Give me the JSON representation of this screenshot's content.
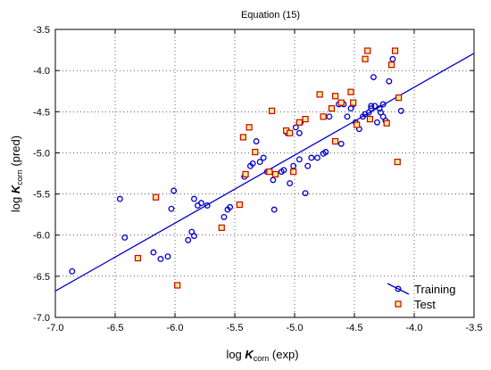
{
  "chart_data": {
    "type": "scatter",
    "title": "Equation (15)",
    "xlabel": {
      "prefix": "log ",
      "symbol": "K",
      "subscript": "corn",
      "suffix": " (exp)"
    },
    "ylabel": {
      "prefix": "log ",
      "symbol": "K",
      "subscript": "corn",
      "suffix": " (pred)"
    },
    "xlim": [
      -7.0,
      -3.5
    ],
    "ylim": [
      -7.0,
      -3.5
    ],
    "xticks": [
      "-7.0",
      "-6.5",
      "-6.0",
      "-5.5",
      "-5.0",
      "-4.5",
      "-4.0",
      "-3.5"
    ],
    "yticks": [
      "-3.5",
      "-4.0",
      "-4.5",
      "-5.0",
      "-5.5",
      "-6.0",
      "-6.5",
      "-7.0"
    ],
    "grid": true,
    "legend_position": "bottom-right",
    "regression_line": {
      "x": [
        -7.0,
        -3.5
      ],
      "y": [
        -6.68,
        -3.79
      ],
      "color": "#0000cc"
    },
    "series": [
      {
        "name": "Training",
        "marker": "circle",
        "color": "#0000cc",
        "points": [
          [
            -6.86,
            -6.44
          ],
          [
            -6.46,
            -5.56
          ],
          [
            -6.42,
            -6.03
          ],
          [
            -6.18,
            -6.21
          ],
          [
            -6.12,
            -6.29
          ],
          [
            -6.06,
            -6.26
          ],
          [
            -6.03,
            -5.68
          ],
          [
            -6.01,
            -5.46
          ],
          [
            -5.89,
            -6.06
          ],
          [
            -5.86,
            -5.96
          ],
          [
            -5.84,
            -6.01
          ],
          [
            -5.84,
            -5.56
          ],
          [
            -5.81,
            -5.64
          ],
          [
            -5.78,
            -5.61
          ],
          [
            -5.73,
            -5.64
          ],
          [
            -5.59,
            -5.78
          ],
          [
            -5.56,
            -5.69
          ],
          [
            -5.54,
            -5.66
          ],
          [
            -5.42,
            -5.29
          ],
          [
            -5.37,
            -5.16
          ],
          [
            -5.35,
            -5.13
          ],
          [
            -5.32,
            -4.86
          ],
          [
            -5.29,
            -5.11
          ],
          [
            -5.26,
            -5.06
          ],
          [
            -5.23,
            -5.23
          ],
          [
            -5.18,
            -5.33
          ],
          [
            -5.17,
            -5.69
          ],
          [
            -5.11,
            -5.23
          ],
          [
            -5.09,
            -5.21
          ],
          [
            -5.06,
            -4.76
          ],
          [
            -5.04,
            -5.37
          ],
          [
            -5.01,
            -5.16
          ],
          [
            -4.99,
            -4.69
          ],
          [
            -4.96,
            -5.08
          ],
          [
            -4.96,
            -4.76
          ],
          [
            -4.95,
            -4.63
          ],
          [
            -4.91,
            -5.49
          ],
          [
            -4.89,
            -5.16
          ],
          [
            -4.86,
            -5.06
          ],
          [
            -4.81,
            -5.06
          ],
          [
            -4.76,
            -5.01
          ],
          [
            -4.74,
            -4.99
          ],
          [
            -4.71,
            -4.56
          ],
          [
            -4.69,
            -4.46
          ],
          [
            -4.61,
            -4.89
          ],
          [
            -4.59,
            -4.41
          ],
          [
            -4.56,
            -4.56
          ],
          [
            -4.53,
            -4.46
          ],
          [
            -4.51,
            -4.41
          ],
          [
            -4.49,
            -4.63
          ],
          [
            -4.46,
            -4.71
          ],
          [
            -4.43,
            -4.56
          ],
          [
            -4.41,
            -4.53
          ],
          [
            -4.38,
            -4.51
          ],
          [
            -4.36,
            -4.46
          ],
          [
            -4.34,
            -4.08
          ],
          [
            -4.33,
            -4.43
          ],
          [
            -4.31,
            -4.63
          ],
          [
            -4.29,
            -4.46
          ],
          [
            -4.26,
            -4.41
          ],
          [
            -4.26,
            -4.56
          ],
          [
            -4.24,
            -4.61
          ],
          [
            -4.21,
            -4.13
          ],
          [
            -4.18,
            -3.86
          ],
          [
            -4.11,
            -4.49
          ],
          [
            -4.28,
            -4.51
          ],
          [
            -4.63,
            -4.41
          ],
          [
            -4.36,
            -4.43
          ]
        ]
      },
      {
        "name": "Test",
        "marker": "square",
        "color": "#cc0000",
        "fill": "#f4ef8c",
        "points": [
          [
            -6.31,
            -6.28
          ],
          [
            -6.16,
            -5.54
          ],
          [
            -5.98,
            -6.61
          ],
          [
            -5.61,
            -5.91
          ],
          [
            -5.46,
            -5.63
          ],
          [
            -5.43,
            -4.81
          ],
          [
            -5.41,
            -5.26
          ],
          [
            -5.38,
            -4.69
          ],
          [
            -5.33,
            -4.99
          ],
          [
            -5.21,
            -5.23
          ],
          [
            -5.19,
            -4.49
          ],
          [
            -5.16,
            -5.26
          ],
          [
            -5.07,
            -4.73
          ],
          [
            -5.04,
            -4.76
          ],
          [
            -5.01,
            -5.23
          ],
          [
            -4.96,
            -4.63
          ],
          [
            -4.91,
            -4.59
          ],
          [
            -4.79,
            -4.29
          ],
          [
            -4.76,
            -4.56
          ],
          [
            -4.69,
            -4.46
          ],
          [
            -4.66,
            -4.86
          ],
          [
            -4.66,
            -4.31
          ],
          [
            -4.61,
            -4.39
          ],
          [
            -4.53,
            -4.26
          ],
          [
            -4.51,
            -4.39
          ],
          [
            -4.48,
            -4.66
          ],
          [
            -4.41,
            -3.86
          ],
          [
            -4.39,
            -3.76
          ],
          [
            -4.37,
            -4.59
          ],
          [
            -4.23,
            -4.64
          ],
          [
            -4.19,
            -3.93
          ],
          [
            -4.16,
            -3.76
          ],
          [
            -4.14,
            -5.11
          ],
          [
            -4.13,
            -4.33
          ]
        ]
      }
    ]
  }
}
